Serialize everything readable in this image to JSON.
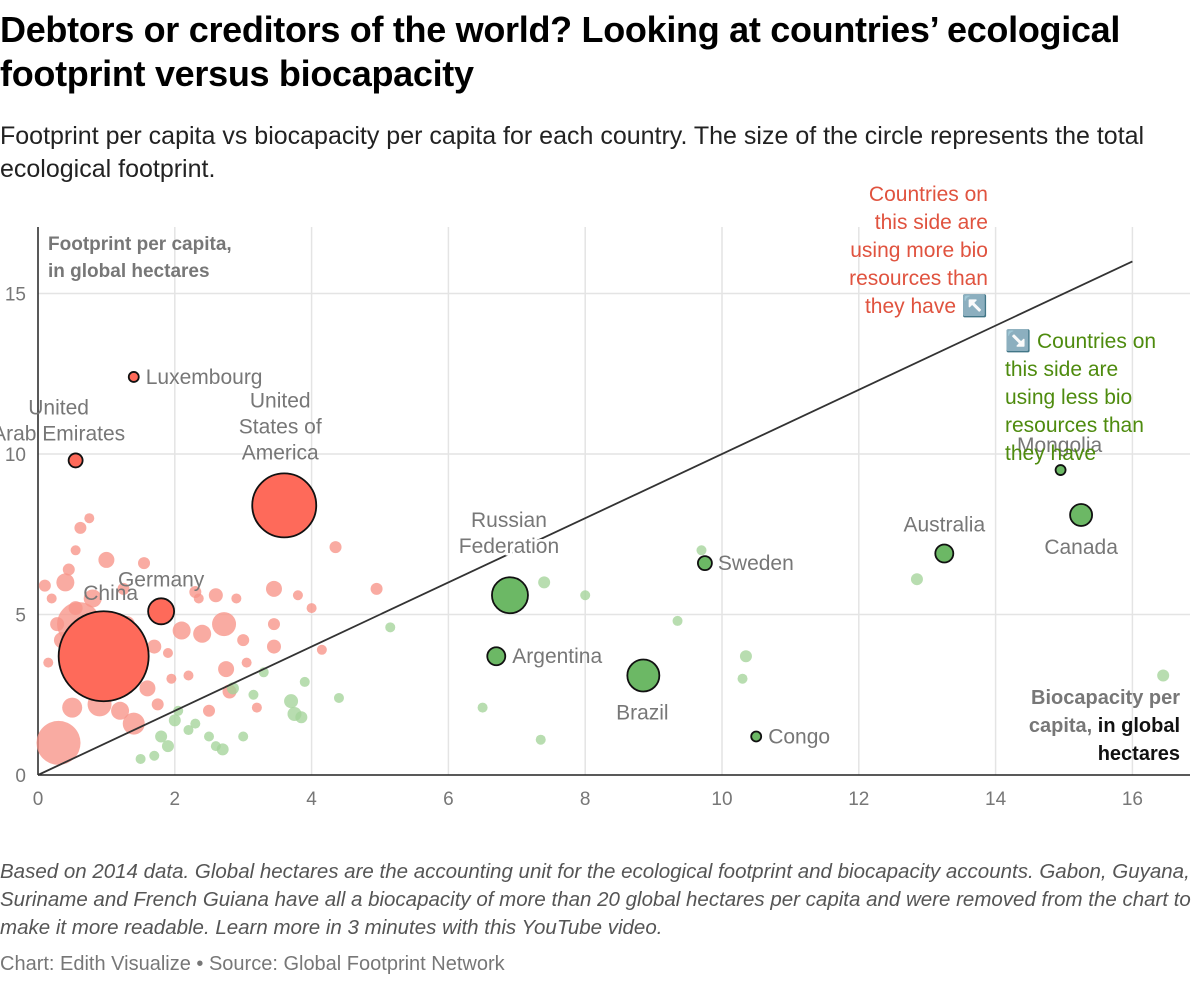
{
  "title": "Debtors or creditors of the world? Looking at countries’ ecological footprint versus biocapacity",
  "subtitle": "Footprint per capita vs biocapacity per capita for each country. The size of the circle represents the total ecological footprint.",
  "footnote": "Based on 2014 data. Global hectares are the accounting unit for the ecological footprint and biocapacity accounts. Gabon, Guyana, Suriname and French Guiana have all a biocapacity of more than 20 global hectares per capita and were removed from the chart to make it more readable. Learn more in 3 minutes with this YouTube video.",
  "credits": "Chart: Edith Visualize • Source: Global Footprint Network",
  "colors": {
    "debtor": "#fe6a5a",
    "debtor_light": "#f79388",
    "creditor": "#6cb865",
    "creditor_light": "#a4d49a",
    "debtor_text": "#e0533f",
    "creditor_text": "#4e8b0e",
    "axis_text": "#777777",
    "grid": "#e4e4e4"
  },
  "chart_data": {
    "type": "scatter",
    "title": "Debtors or creditors of the world? Looking at countries’ ecological footprint versus biocapacity",
    "xlabel_part1": "Biocapacity per",
    "xlabel_part2": "capita,",
    "xlabel_part3": "in global",
    "xlabel_part4": "hectares",
    "ylabel_line1": "Footprint per capita,",
    "ylabel_line2": "in global hectares",
    "xlim": [
      0,
      16.5
    ],
    "ylim": [
      0,
      17
    ],
    "x_ticks": [
      0,
      2,
      4,
      6,
      8,
      10,
      12,
      14,
      16
    ],
    "y_ticks": [
      0,
      5,
      10,
      15
    ],
    "diagonal": {
      "x": [
        0,
        16
      ],
      "y": [
        0,
        16
      ]
    },
    "annotations": {
      "debtor_lines": [
        "Countries on",
        "this side are",
        "using more bio",
        "resources than",
        "they have ↖️"
      ],
      "creditor_lines": [
        "↘️ Countries on",
        "this side are",
        "using less bio",
        "resources than",
        "they have"
      ]
    },
    "labeled_points": [
      {
        "name": "Luxembourg",
        "label_lines": [
          "Luxembourg"
        ],
        "x": 1.4,
        "y": 12.4,
        "r": 5,
        "side": "debtor"
      },
      {
        "name": "United Arab Emirates",
        "label_lines": [
          "United",
          "Arab Emirates"
        ],
        "x": 0.55,
        "y": 9.8,
        "r": 7,
        "side": "debtor"
      },
      {
        "name": "United States of America",
        "label_lines": [
          "United",
          "States of",
          "America"
        ],
        "x": 3.6,
        "y": 8.4,
        "r": 32,
        "side": "debtor"
      },
      {
        "name": "Germany",
        "label_lines": [
          "Germany"
        ],
        "x": 1.8,
        "y": 5.1,
        "r": 13,
        "side": "debtor"
      },
      {
        "name": "China",
        "label_lines": [
          "China"
        ],
        "x": 0.96,
        "y": 3.7,
        "r": 45,
        "side": "debtor"
      },
      {
        "name": "Russian Federation",
        "label_lines": [
          "Russian",
          "Federation"
        ],
        "x": 6.9,
        "y": 5.6,
        "r": 18,
        "side": "creditor"
      },
      {
        "name": "Argentina",
        "label_lines": [
          "Argentina"
        ],
        "x": 6.7,
        "y": 3.7,
        "r": 9,
        "side": "creditor"
      },
      {
        "name": "Brazil",
        "label_lines": [
          "Brazil"
        ],
        "x": 8.85,
        "y": 3.1,
        "r": 16,
        "side": "creditor"
      },
      {
        "name": "Sweden",
        "label_lines": [
          "Sweden"
        ],
        "x": 9.75,
        "y": 6.6,
        "r": 7,
        "side": "creditor"
      },
      {
        "name": "Congo",
        "label_lines": [
          "Congo"
        ],
        "x": 10.5,
        "y": 1.2,
        "r": 5,
        "side": "creditor"
      },
      {
        "name": "Australia",
        "label_lines": [
          "Australia"
        ],
        "x": 13.25,
        "y": 6.9,
        "r": 9,
        "side": "creditor"
      },
      {
        "name": "Mongolia",
        "label_lines": [
          "Mongolia"
        ],
        "x": 14.95,
        "y": 9.5,
        "r": 5,
        "side": "creditor"
      },
      {
        "name": "Canada",
        "label_lines": [
          "Canada"
        ],
        "x": 15.25,
        "y": 8.1,
        "r": 11,
        "side": "creditor"
      }
    ],
    "background_points": [
      [
        0.1,
        5.9,
        6,
        "d"
      ],
      [
        0.15,
        3.5,
        5,
        "d"
      ],
      [
        0.2,
        5.5,
        5,
        "d"
      ],
      [
        0.28,
        4.7,
        7,
        "d"
      ],
      [
        0.35,
        4.2,
        8,
        "d"
      ],
      [
        0.4,
        6.0,
        9,
        "d"
      ],
      [
        0.45,
        6.4,
        6,
        "d"
      ],
      [
        0.5,
        2.1,
        10,
        "d"
      ],
      [
        0.55,
        5.2,
        7,
        "d"
      ],
      [
        0.6,
        4.7,
        22,
        "d"
      ],
      [
        0.62,
        7.7,
        6,
        "d"
      ],
      [
        0.7,
        3.0,
        14,
        "d"
      ],
      [
        0.8,
        5.5,
        9,
        "d"
      ],
      [
        0.9,
        2.2,
        12,
        "d"
      ],
      [
        1.0,
        6.7,
        8,
        "d"
      ],
      [
        1.05,
        4.3,
        10,
        "d"
      ],
      [
        1.1,
        2.8,
        10,
        "d"
      ],
      [
        1.2,
        2.0,
        9,
        "d"
      ],
      [
        1.25,
        5.8,
        6,
        "d"
      ],
      [
        1.3,
        4.7,
        8,
        "d"
      ],
      [
        1.4,
        1.6,
        11,
        "d"
      ],
      [
        1.5,
        3.6,
        7,
        "d"
      ],
      [
        1.55,
        6.6,
        6,
        "d"
      ],
      [
        1.6,
        2.7,
        8,
        "d"
      ],
      [
        1.7,
        4.0,
        7,
        "d"
      ],
      [
        1.75,
        2.2,
        6,
        "d"
      ],
      [
        1.95,
        3.0,
        5,
        "d"
      ],
      [
        2.1,
        4.5,
        9,
        "d"
      ],
      [
        2.2,
        3.1,
        5,
        "d"
      ],
      [
        2.3,
        5.7,
        6,
        "d"
      ],
      [
        2.4,
        4.4,
        9,
        "d"
      ],
      [
        2.5,
        2.0,
        6,
        "d"
      ],
      [
        2.6,
        5.6,
        7,
        "d"
      ],
      [
        2.72,
        4.7,
        12,
        "d"
      ],
      [
        2.75,
        3.3,
        8,
        "d"
      ],
      [
        2.8,
        2.6,
        7,
        "d"
      ],
      [
        2.9,
        5.5,
        5,
        "d"
      ],
      [
        3.0,
        4.2,
        6,
        "d"
      ],
      [
        3.05,
        3.5,
        5,
        "d"
      ],
      [
        3.2,
        2.1,
        5,
        "d"
      ],
      [
        3.45,
        5.8,
        8,
        "d"
      ],
      [
        3.45,
        4.0,
        7,
        "d"
      ],
      [
        3.45,
        4.7,
        6,
        "d"
      ],
      [
        3.8,
        5.6,
        5,
        "d"
      ],
      [
        4.0,
        5.2,
        5,
        "d"
      ],
      [
        4.15,
        3.9,
        5,
        "d"
      ],
      [
        4.35,
        7.1,
        6,
        "d"
      ],
      [
        4.95,
        5.8,
        6,
        "d"
      ],
      [
        0.3,
        1.0,
        22,
        "d"
      ],
      [
        0.55,
        7.0,
        5,
        "d"
      ],
      [
        0.4,
        3.4,
        5,
        "d"
      ],
      [
        2.35,
        5.5,
        5,
        "d"
      ],
      [
        1.9,
        3.8,
        5,
        "d"
      ],
      [
        0.75,
        8.0,
        5,
        "d"
      ],
      [
        1.5,
        0.5,
        5,
        "c"
      ],
      [
        1.7,
        0.6,
        5,
        "c"
      ],
      [
        1.8,
        1.2,
        6,
        "c"
      ],
      [
        1.9,
        0.9,
        6,
        "c"
      ],
      [
        2.0,
        1.7,
        6,
        "c"
      ],
      [
        2.05,
        2.0,
        5,
        "c"
      ],
      [
        2.2,
        1.4,
        5,
        "c"
      ],
      [
        2.3,
        1.6,
        5,
        "c"
      ],
      [
        2.5,
        1.2,
        5,
        "c"
      ],
      [
        2.6,
        0.9,
        5,
        "c"
      ],
      [
        2.7,
        0.8,
        6,
        "c"
      ],
      [
        2.85,
        2.7,
        6,
        "c"
      ],
      [
        3.0,
        1.2,
        5,
        "c"
      ],
      [
        3.15,
        2.5,
        5,
        "c"
      ],
      [
        3.3,
        3.2,
        5,
        "c"
      ],
      [
        3.7,
        2.3,
        7,
        "c"
      ],
      [
        3.75,
        1.9,
        7,
        "c"
      ],
      [
        3.85,
        1.8,
        6,
        "c"
      ],
      [
        3.9,
        2.9,
        5,
        "c"
      ],
      [
        4.4,
        2.4,
        5,
        "c"
      ],
      [
        5.15,
        4.6,
        5,
        "c"
      ],
      [
        6.5,
        2.1,
        5,
        "c"
      ],
      [
        7.35,
        1.1,
        5,
        "c"
      ],
      [
        7.4,
        6.0,
        6,
        "c"
      ],
      [
        8.0,
        5.6,
        5,
        "c"
      ],
      [
        9.35,
        4.8,
        5,
        "c"
      ],
      [
        9.7,
        7.0,
        5,
        "c"
      ],
      [
        10.35,
        3.7,
        6,
        "c"
      ],
      [
        10.3,
        3.0,
        5,
        "c"
      ],
      [
        12.85,
        6.1,
        6,
        "c"
      ],
      [
        16.45,
        3.1,
        6,
        "c"
      ]
    ]
  }
}
